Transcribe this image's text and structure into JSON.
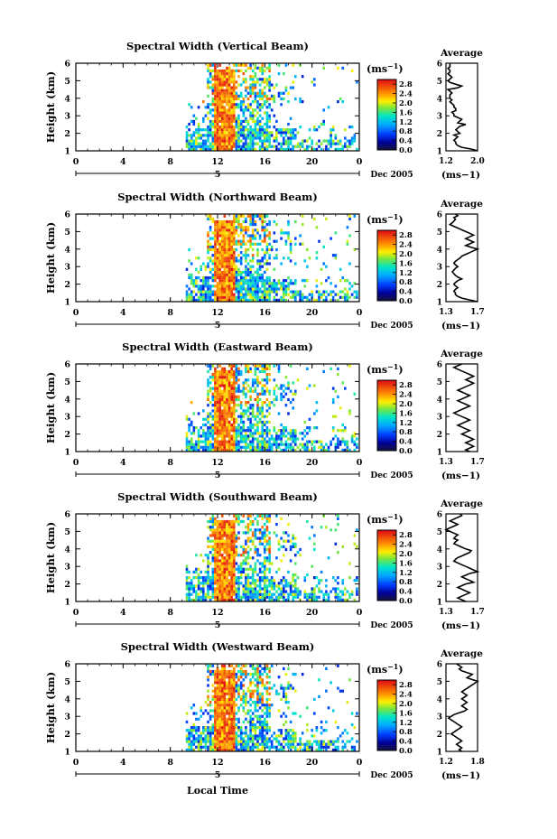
{
  "figure": {
    "x_axis_label": "Local Time",
    "date_label": "Dec 2005",
    "day_label": "5",
    "unit_label": "(ms",
    "unit_exp": "−1",
    "avg_title": "Average"
  },
  "chart_data": [
    {
      "type": "heatmap",
      "title": "Spectral Width (Vertical Beam)",
      "ylabel": "Height (km)",
      "x_ticks": [
        "0",
        "4",
        "8",
        "12",
        "16",
        "20",
        "0"
      ],
      "xlim_hours": [
        0,
        24
      ],
      "y_ticks": [
        "1",
        "2",
        "3",
        "4",
        "5",
        "6"
      ],
      "ylim_km": [
        1,
        6
      ],
      "colorbar_ticks": [
        "0.0",
        "0.4",
        "0.8",
        "1.2",
        "1.6",
        "2.0",
        "2.4",
        "2.8"
      ],
      "colorbar_range": [
        0,
        3.0
      ],
      "average_profile": {
        "title": "Average",
        "x_ticks": [
          "1.2",
          "2.0"
        ],
        "xlim": [
          1.2,
          2.0
        ],
        "xlabel": "(ms−1)",
        "values": [
          2.0,
          1.85,
          1.6,
          1.5,
          1.45,
          1.45,
          1.4,
          1.45,
          1.5,
          1.4,
          1.55,
          1.5,
          1.45,
          1.5,
          1.55,
          1.7,
          1.5,
          1.55,
          1.6,
          1.5,
          1.4,
          1.4,
          1.35,
          1.45,
          1.45,
          1.4,
          1.4,
          1.35,
          1.3,
          1.35,
          1.3,
          1.3,
          1.3,
          1.35,
          1.3,
          1.25,
          1.5,
          1.6,
          1.45,
          1.3,
          1.25,
          1.3,
          1.35,
          1.3,
          1.25,
          1.3,
          1.3,
          1.25,
          1.3,
          1.3,
          1.3
        ]
      }
    },
    {
      "type": "heatmap",
      "title": "Spectral Width (Northward Beam)",
      "ylabel": "Height (km)",
      "x_ticks": [
        "0",
        "4",
        "8",
        "12",
        "16",
        "20",
        "0"
      ],
      "xlim_hours": [
        0,
        24
      ],
      "y_ticks": [
        "1",
        "2",
        "3",
        "4",
        "5",
        "6"
      ],
      "ylim_km": [
        1,
        6
      ],
      "colorbar_ticks": [
        "0.0",
        "0.4",
        "0.8",
        "1.2",
        "1.6",
        "2.0",
        "2.4",
        "2.8"
      ],
      "colorbar_range": [
        0,
        3.0
      ],
      "average_profile": {
        "title": "Average",
        "x_ticks": [
          "1.3",
          "1.7"
        ],
        "xlim": [
          1.3,
          1.7
        ],
        "xlabel": "(ms−1)",
        "values": [
          1.7,
          1.6,
          1.5,
          1.45,
          1.42,
          1.42,
          1.4,
          1.42,
          1.45,
          1.42,
          1.4,
          1.42,
          1.45,
          1.5,
          1.45,
          1.42,
          1.4,
          1.38,
          1.4,
          1.42,
          1.45,
          1.42,
          1.4,
          1.42,
          1.45,
          1.48,
          1.5,
          1.55,
          1.6,
          1.65,
          1.7,
          1.62,
          1.55,
          1.6,
          1.65,
          1.6,
          1.55,
          1.6,
          1.65,
          1.6,
          1.55,
          1.5,
          1.45,
          1.4,
          1.35,
          1.38,
          1.4,
          1.42,
          1.4,
          1.45,
          1.42
        ]
      }
    },
    {
      "type": "heatmap",
      "title": "Spectral Width (Eastward Beam)",
      "ylabel": "Height (km)",
      "x_ticks": [
        "0",
        "4",
        "8",
        "12",
        "16",
        "20",
        "0"
      ],
      "xlim_hours": [
        0,
        24
      ],
      "y_ticks": [
        "1",
        "2",
        "3",
        "4",
        "5",
        "6"
      ],
      "ylim_km": [
        1,
        6
      ],
      "colorbar_ticks": [
        "0.0",
        "0.4",
        "0.8",
        "1.2",
        "1.6",
        "2.0",
        "2.4",
        "2.8"
      ],
      "colorbar_range": [
        0,
        3.0
      ],
      "average_profile": {
        "title": "Average",
        "x_ticks": [
          "1.3",
          "1.7"
        ],
        "xlim": [
          1.3,
          1.7
        ],
        "xlabel": "(ms−1)",
        "values": [
          1.6,
          1.55,
          1.6,
          1.65,
          1.6,
          1.55,
          1.6,
          1.65,
          1.6,
          1.55,
          1.5,
          1.55,
          1.6,
          1.55,
          1.5,
          1.45,
          1.5,
          1.55,
          1.6,
          1.55,
          1.5,
          1.45,
          1.4,
          1.45,
          1.5,
          1.55,
          1.6,
          1.55,
          1.5,
          1.45,
          1.5,
          1.55,
          1.6,
          1.55,
          1.5,
          1.45,
          1.5,
          1.55,
          1.6,
          1.65,
          1.6,
          1.55,
          1.6,
          1.65,
          1.6,
          1.55,
          1.5,
          1.45,
          1.4,
          1.45,
          1.5
        ]
      }
    },
    {
      "type": "heatmap",
      "title": "Spectral Width (Southward Beam)",
      "ylabel": "Height (km)",
      "x_ticks": [
        "0",
        "4",
        "8",
        "12",
        "16",
        "20",
        "0"
      ],
      "xlim_hours": [
        0,
        24
      ],
      "y_ticks": [
        "1",
        "2",
        "3",
        "4",
        "5",
        "6"
      ],
      "ylim_km": [
        1,
        6
      ],
      "colorbar_ticks": [
        "0.0",
        "0.4",
        "0.8",
        "1.2",
        "1.6",
        "2.0",
        "2.4",
        "2.8"
      ],
      "colorbar_range": [
        0,
        3.0
      ],
      "average_profile": {
        "title": "Average",
        "x_ticks": [
          "1.3",
          "1.7"
        ],
        "xlim": [
          1.3,
          1.7
        ],
        "xlabel": "(ms−1)",
        "values": [
          1.55,
          1.5,
          1.45,
          1.5,
          1.55,
          1.6,
          1.55,
          1.5,
          1.45,
          1.5,
          1.55,
          1.65,
          1.6,
          1.55,
          1.5,
          1.55,
          1.6,
          1.7,
          1.65,
          1.6,
          1.55,
          1.5,
          1.45,
          1.4,
          1.42,
          1.45,
          1.5,
          1.55,
          1.6,
          1.62,
          1.55,
          1.5,
          1.45,
          1.4,
          1.42,
          1.45,
          1.4,
          1.42,
          1.45,
          1.4,
          1.35,
          1.3,
          1.35,
          1.4,
          1.45,
          1.4,
          1.35,
          1.4,
          1.45,
          1.5,
          1.48
        ]
      }
    },
    {
      "type": "heatmap",
      "title": "Spectral Width (Westward Beam)",
      "ylabel": "Height (km)",
      "x_ticks": [
        "0",
        "4",
        "8",
        "12",
        "16",
        "20",
        "0"
      ],
      "xlim_hours": [
        0,
        24
      ],
      "y_ticks": [
        "1",
        "2",
        "3",
        "4",
        "5",
        "6"
      ],
      "ylim_km": [
        1,
        6
      ],
      "colorbar_ticks": [
        "0.0",
        "0.4",
        "0.8",
        "1.2",
        "1.6",
        "2.0",
        "2.4",
        "2.8"
      ],
      "colorbar_range": [
        0,
        3.0
      ],
      "average_profile": {
        "title": "Average",
        "x_ticks": [
          "1.2",
          "1.8"
        ],
        "xlim": [
          1.2,
          1.8
        ],
        "xlabel": "(ms−1)",
        "values": [
          1.5,
          1.45,
          1.5,
          1.45,
          1.4,
          1.45,
          1.5,
          1.45,
          1.4,
          1.35,
          1.3,
          1.35,
          1.4,
          1.45,
          1.5,
          1.45,
          1.4,
          1.35,
          1.3,
          1.25,
          1.3,
          1.35,
          1.45,
          1.55,
          1.6,
          1.55,
          1.5,
          1.55,
          1.6,
          1.55,
          1.5,
          1.55,
          1.6,
          1.55,
          1.5,
          1.55,
          1.6,
          1.65,
          1.7,
          1.75,
          1.8,
          1.7,
          1.6,
          1.65,
          1.7,
          1.6,
          1.5,
          1.45,
          1.5,
          1.45,
          1.4
        ]
      }
    }
  ]
}
